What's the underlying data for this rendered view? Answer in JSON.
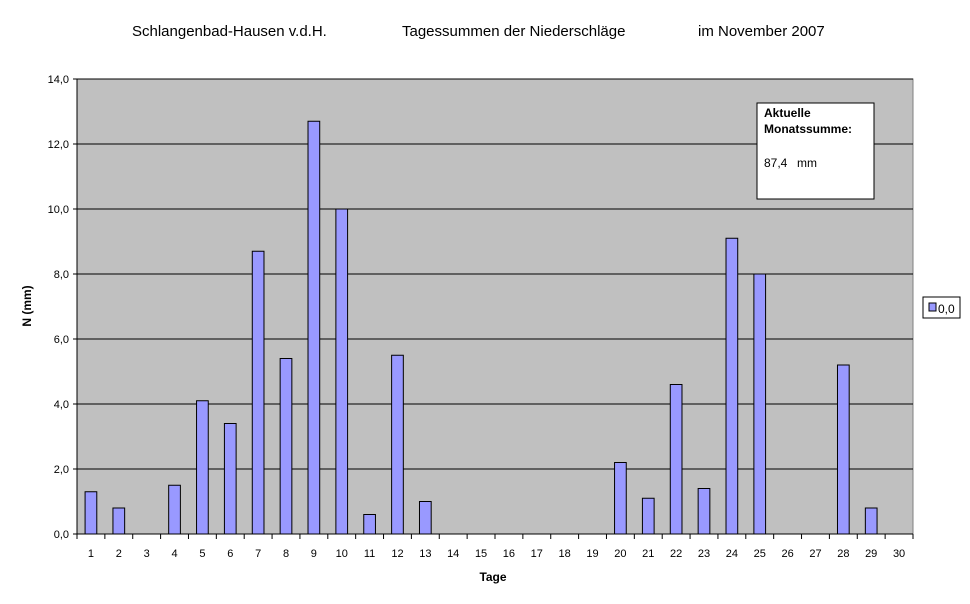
{
  "chart_data": {
    "type": "bar",
    "title_parts": [
      "Schlangenbad-Hausen v.d.H.",
      "Tagessummen der Niederschläge",
      "im November 2007"
    ],
    "xlabel": "Tage",
    "ylabel": "N (mm)",
    "categories": [
      "1",
      "2",
      "3",
      "4",
      "5",
      "6",
      "7",
      "8",
      "9",
      "10",
      "11",
      "12",
      "13",
      "14",
      "15",
      "16",
      "17",
      "18",
      "19",
      "20",
      "21",
      "22",
      "23",
      "24",
      "25",
      "26",
      "27",
      "28",
      "29",
      "30"
    ],
    "series": [
      {
        "name": "0,0",
        "values": [
          1.3,
          0.8,
          0,
          1.5,
          4.1,
          3.4,
          8.7,
          5.4,
          12.7,
          10.0,
          0.6,
          5.5,
          1.0,
          0,
          0,
          0,
          0,
          0,
          0,
          2.2,
          1.1,
          4.6,
          1.4,
          9.1,
          8.0,
          0,
          0,
          5.2,
          0.8,
          0
        ]
      }
    ],
    "ylim": [
      0,
      14
    ],
    "yticks": [
      "0,0",
      "2,0",
      "4,0",
      "6,0",
      "8,0",
      "10,0",
      "12,0",
      "14,0"
    ],
    "ytick_values": [
      0,
      2,
      4,
      6,
      8,
      10,
      12,
      14
    ],
    "grid": true,
    "legend_position": "right",
    "annotation": {
      "line1": "Aktuelle",
      "line2": "Monatssumme:",
      "value": "87,4",
      "unit": "mm"
    },
    "colors": {
      "plot_bg": "#c0c0c0",
      "bar_fill": "#9999ff",
      "bar_stroke": "#000000",
      "grid": "#000000"
    }
  }
}
